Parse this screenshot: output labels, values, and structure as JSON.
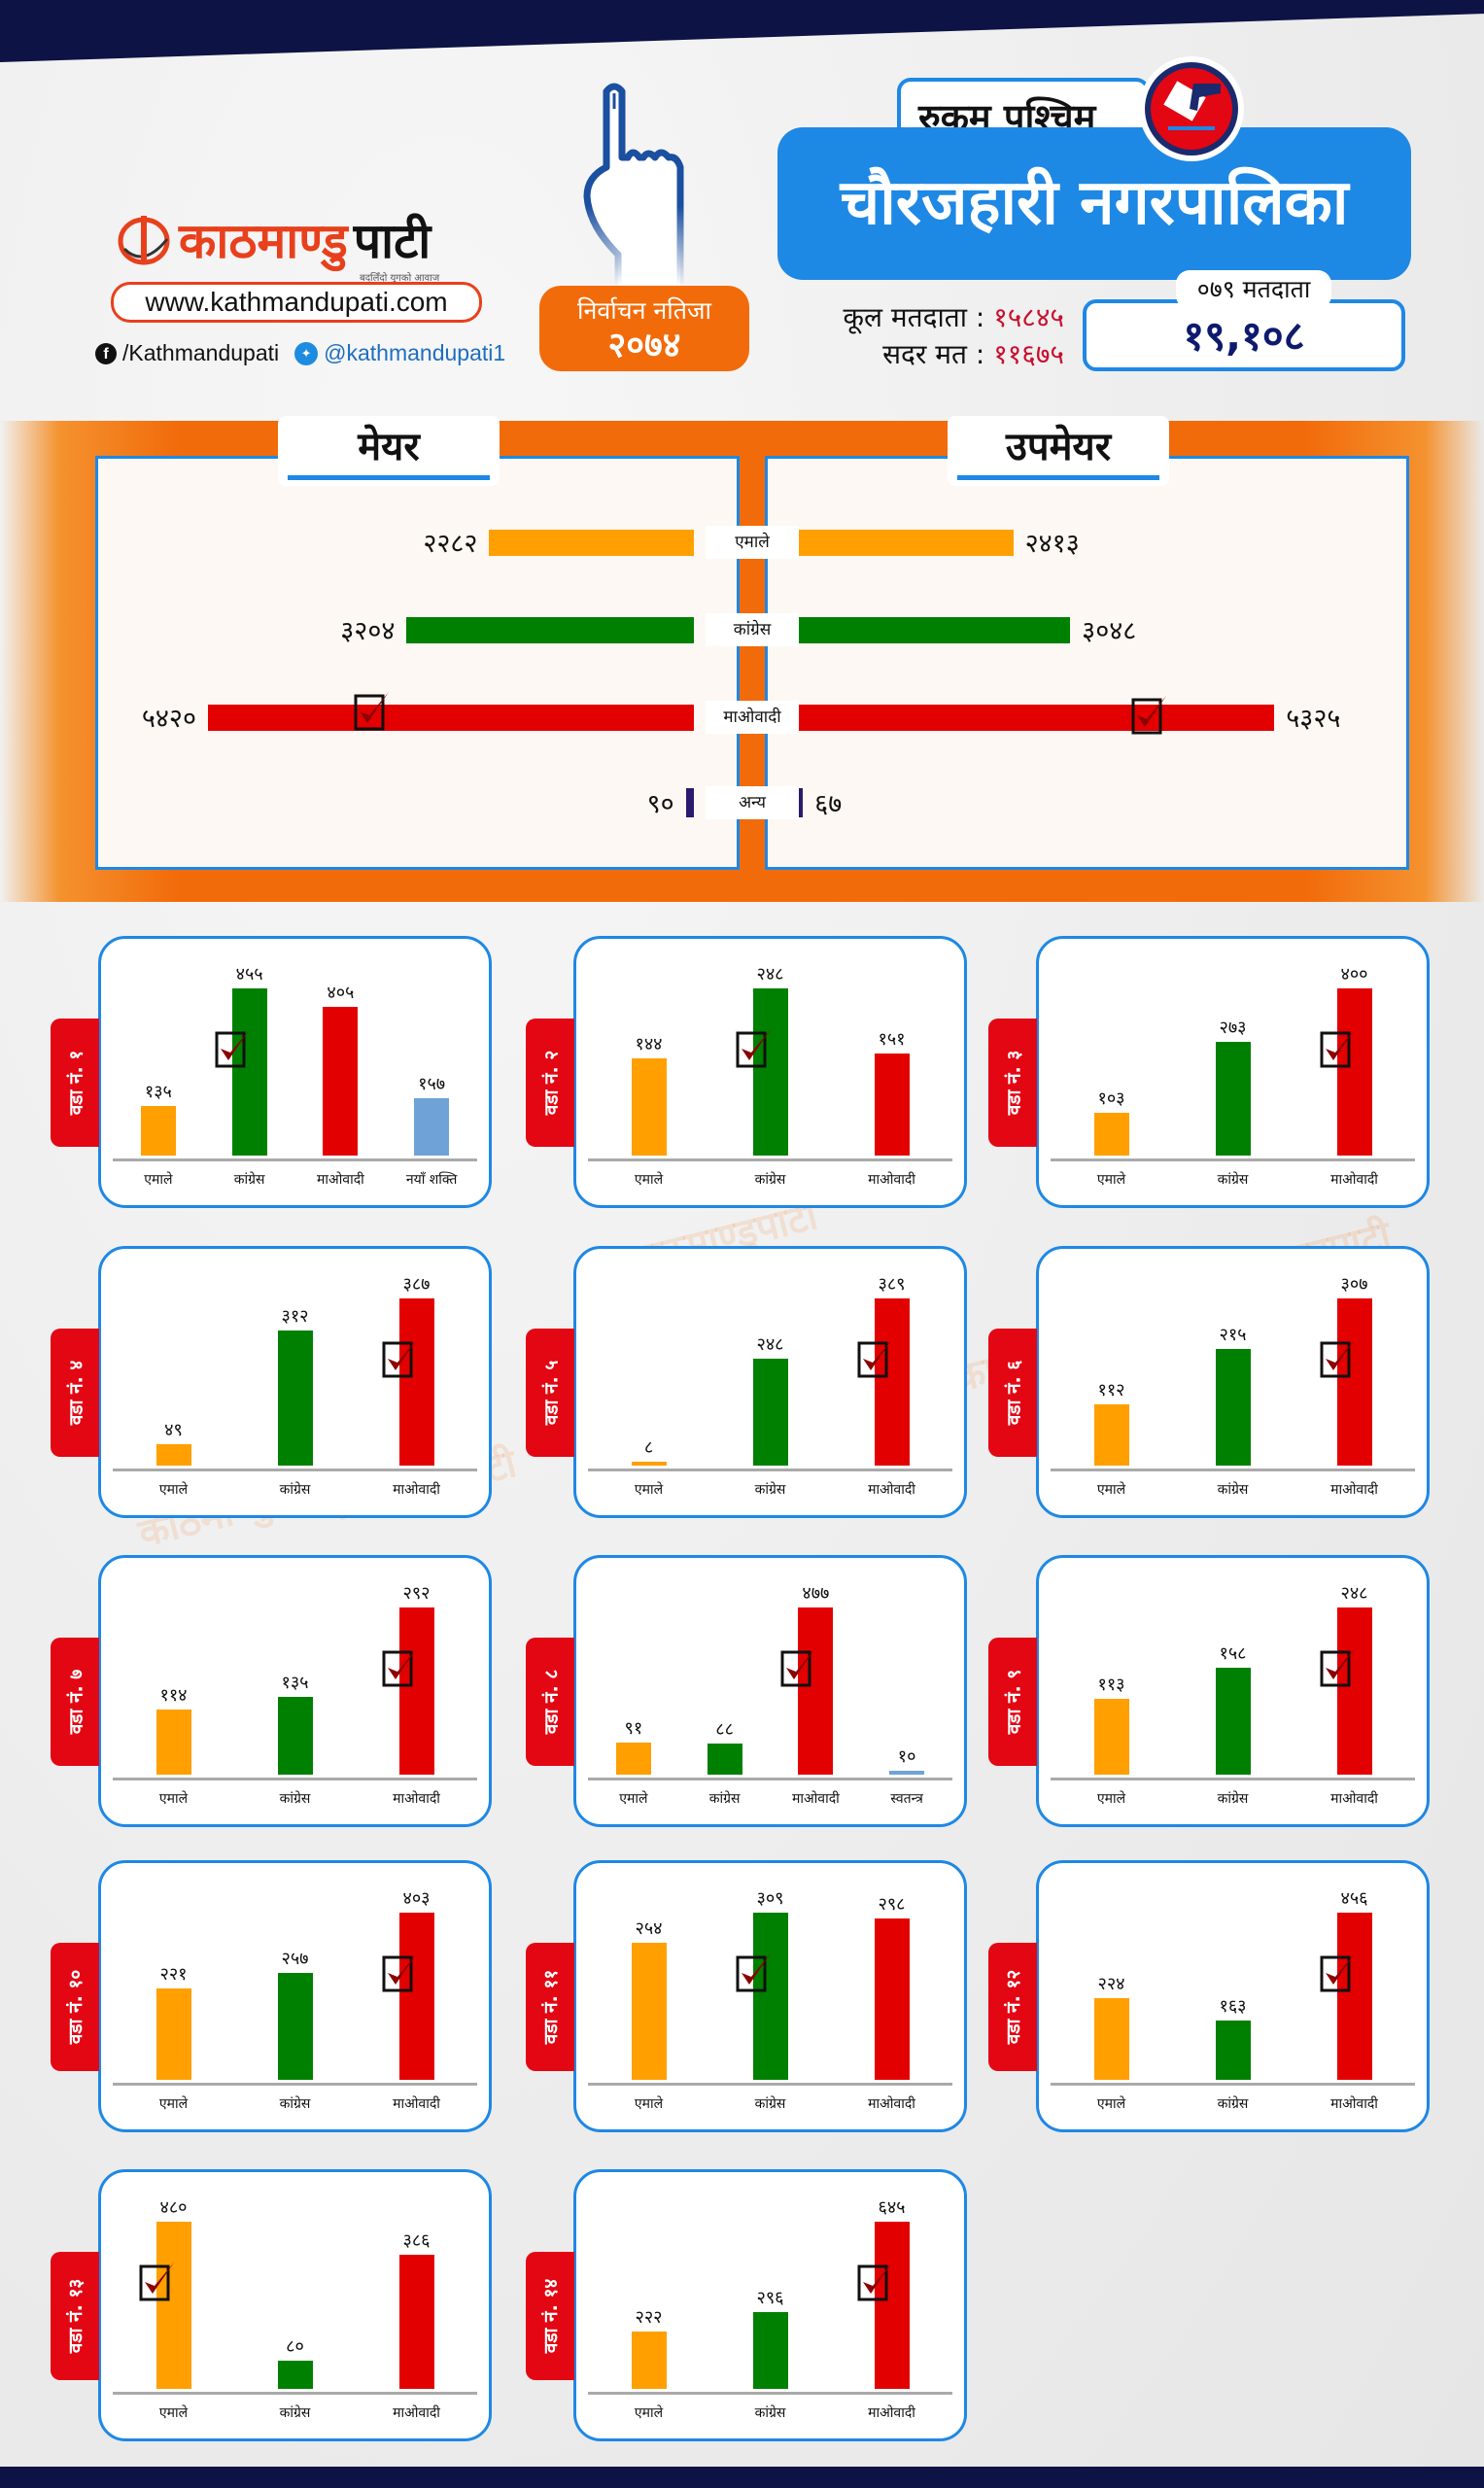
{
  "header": {
    "logo_red": "काठमाण्डु",
    "logo_black": "पाटी",
    "logo_tagline": "बदलिँदो युगको आवाज",
    "website": "www.kathmandupati.com",
    "facebook": "/Kathmandupati",
    "twitter": "@kathmandupati1",
    "badge_line1": "निर्वाचन नतिजा",
    "badge_line2": "२०७४",
    "district": "रुकुम पश्चिम",
    "municipality": "चौरजहारी नगरपालिका",
    "total_voters_label": "कूल मतदाता :",
    "total_voters_value": "१५८४५",
    "valid_votes_label": "सदर मत :",
    "valid_votes_value": "११६७५",
    "voters_079_label": "०७९ मतदाता",
    "voters_079_value": "१९,१०८"
  },
  "colors": {
    "एमाले": "#FF9F00",
    "कांग्रेस": "#008000",
    "माओवादी": "#E30000",
    "अन्य": "#2A1A6E",
    "नयाँ शक्ति": "#6FA3D8",
    "स्वतन्त्र": "#6FA3D8",
    "accent_blue": "#1E88E5",
    "accent_orange": "#F26B0A"
  },
  "chart_data": [
    {
      "type": "bar",
      "orientation": "horizontal-butterfly",
      "categories": [
        "एमाले",
        "कांग्रेस",
        "माओवादी",
        "अन्य"
      ],
      "series": [
        {
          "name": "मेयर",
          "values": [
            2282,
            3204,
            5420,
            90
          ],
          "winner": "माओवादी"
        },
        {
          "name": "उपमेयर",
          "values": [
            2413,
            3048,
            5325,
            67
          ],
          "winner": "माओवादी"
        }
      ]
    },
    {
      "type": "bar",
      "wards": [
        {
          "label": "वडा नं. १",
          "categories": [
            "एमाले",
            "कांग्रेस",
            "माओवादी",
            "नयाँ शक्ति"
          ],
          "values": [
            135,
            455,
            405,
            157
          ],
          "winner": "कांग्रेस"
        },
        {
          "label": "वडा नं. २",
          "categories": [
            "एमाले",
            "कांग्रेस",
            "माओवादी"
          ],
          "values": [
            144,
            248,
            151
          ],
          "winner": "कांग्रेस"
        },
        {
          "label": "वडा नं. ३",
          "categories": [
            "एमाले",
            "कांग्रेस",
            "माओवादी"
          ],
          "values": [
            103,
            273,
            400
          ],
          "winner": "माओवादी"
        },
        {
          "label": "वडा नं. ४",
          "categories": [
            "एमाले",
            "कांग्रेस",
            "माओवादी"
          ],
          "values": [
            49,
            312,
            387
          ],
          "winner": "माओवादी"
        },
        {
          "label": "वडा नं. ५",
          "categories": [
            "एमाले",
            "कांग्रेस",
            "माओवादी"
          ],
          "values": [
            8,
            248,
            389
          ],
          "winner": "माओवादी"
        },
        {
          "label": "वडा नं. ६",
          "categories": [
            "एमाले",
            "कांग्रेस",
            "माओवादी"
          ],
          "values": [
            112,
            215,
            307
          ],
          "winner": "माओवादी"
        },
        {
          "label": "वडा नं. ७",
          "categories": [
            "एमाले",
            "कांग्रेस",
            "माओवादी"
          ],
          "values": [
            114,
            135,
            292
          ],
          "winner": "माओवादी"
        },
        {
          "label": "वडा नं. ८",
          "categories": [
            "एमाले",
            "कांग्रेस",
            "माओवादी",
            "स्वतन्त्र"
          ],
          "values": [
            91,
            88,
            477,
            10
          ],
          "winner": "माओवादी"
        },
        {
          "label": "वडा नं. ९",
          "categories": [
            "एमाले",
            "कांग्रेस",
            "माओवादी"
          ],
          "values": [
            113,
            158,
            248
          ],
          "winner": "माओवादी"
        },
        {
          "label": "वडा नं. १०",
          "categories": [
            "एमाले",
            "कांग्रेस",
            "माओवादी"
          ],
          "values": [
            221,
            257,
            403
          ],
          "winner": "माओवादी"
        },
        {
          "label": "वडा नं. ११",
          "categories": [
            "एमाले",
            "कांग्रेस",
            "माओवादी"
          ],
          "values": [
            254,
            309,
            298
          ],
          "winner": "कांग्रेस"
        },
        {
          "label": "वडा नं. १२",
          "categories": [
            "एमाले",
            "कांग्रेस",
            "माओवादी"
          ],
          "values": [
            224,
            163,
            456
          ],
          "winner": "माओवादी"
        },
        {
          "label": "वडा नं. १३",
          "categories": [
            "एमाले",
            "कांग्रेस",
            "माओवादी"
          ],
          "values": [
            480,
            80,
            386
          ],
          "winner": "एमाले"
        },
        {
          "label": "वडा नं. १४",
          "categories": [
            "एमाले",
            "कांग्रेस",
            "माओवादी"
          ],
          "values": [
            222,
            296,
            645
          ],
          "winner": "माओवादी"
        }
      ]
    }
  ]
}
